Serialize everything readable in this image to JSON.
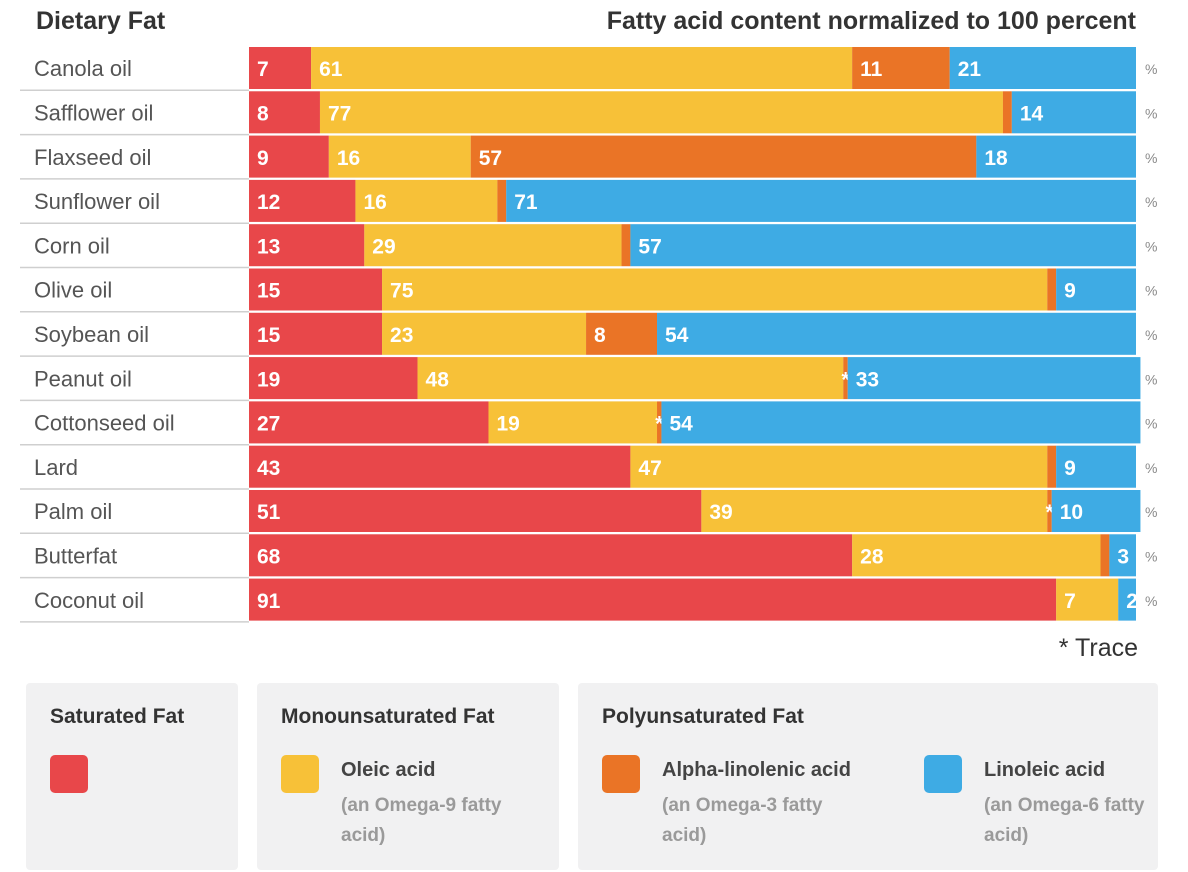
{
  "header": {
    "left_title": "Dietary Fat",
    "right_title": "Fatty acid content normalized to 100 percent"
  },
  "footnote": "* Trace",
  "legend": {
    "saturated_title": "Saturated Fat",
    "mono_title": "Monounsaturated Fat",
    "poly_title": "Polyunsaturated Fat",
    "oleic_name": "Oleic acid",
    "oleic_sub": "(an Omega-9 fatty acid)",
    "ala_name": "Alpha-linolenic acid",
    "ala_sub": "(an Omega-3 fatty acid)",
    "la_name": "Linoleic acid",
    "la_sub": "(an Omega-6 fatty acid)"
  },
  "colors": {
    "saturated": "#e8474a",
    "oleic": "#f7c138",
    "ala": "#ea7426",
    "linoleic": "#3eabe4"
  },
  "chart_data": {
    "type": "bar",
    "orientation": "horizontal",
    "stacked": true,
    "xlim": [
      0,
      100
    ],
    "unit": "%",
    "categories": [
      "Canola oil",
      "Safflower oil",
      "Flaxseed oil",
      "Sunflower oil",
      "Corn oil",
      "Olive oil",
      "Soybean oil",
      "Peanut oil",
      "Cottonseed oil",
      "Lard",
      "Palm oil",
      "Butterfat",
      "Coconut oil"
    ],
    "series": [
      {
        "name": "Saturated Fat",
        "color": "#e8474a",
        "values": [
          7,
          8,
          9,
          12,
          13,
          15,
          15,
          19,
          27,
          43,
          51,
          68,
          91
        ],
        "labels": [
          "7",
          "8",
          "9",
          "12",
          "13",
          "15",
          "15",
          "19",
          "27",
          "43",
          "51",
          "68",
          "91"
        ]
      },
      {
        "name": "Oleic acid",
        "color": "#f7c138",
        "values": [
          61,
          77,
          16,
          16,
          29,
          75,
          23,
          48,
          19,
          47,
          39,
          28,
          7
        ],
        "labels": [
          "61",
          "77",
          "16",
          "16",
          "29",
          "75",
          "23",
          "48",
          "19",
          "47",
          "39",
          "28",
          "7"
        ]
      },
      {
        "name": "Alpha-linolenic acid",
        "color": "#ea7426",
        "values": [
          11,
          1,
          57,
          1,
          1,
          1,
          8,
          0.5,
          0.5,
          1,
          0.5,
          1,
          0
        ],
        "labels": [
          "11",
          "1",
          "57",
          "1",
          "1",
          "1",
          "8",
          "*",
          "*",
          "1",
          "*",
          "1",
          ""
        ]
      },
      {
        "name": "Linoleic acid",
        "color": "#3eabe4",
        "values": [
          21,
          14,
          18,
          71,
          57,
          9,
          54,
          33,
          54,
          9,
          10,
          3,
          2
        ],
        "labels": [
          "21",
          "14",
          "18",
          "71",
          "57",
          "9",
          "54",
          "33",
          "54",
          "9",
          "10",
          "3",
          "2"
        ]
      }
    ]
  }
}
